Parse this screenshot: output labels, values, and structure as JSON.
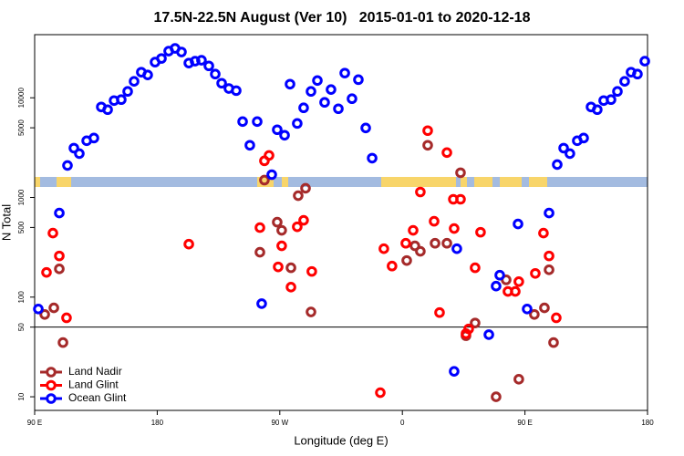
{
  "chart_data": {
    "type": "scatter",
    "title": "17.5N-22.5N August (Ver 10)   2015-01-01 to 2020-12-18",
    "x_label": "Longitude (deg E)",
    "y_label": "N Total",
    "xlim": [
      90,
      540
    ],
    "xticks": [
      {
        "value": 90,
        "label": "90 E"
      },
      180,
      {
        "value": 270,
        "label": "90 W"
      },
      {
        "value": 360,
        "label": "0"
      },
      {
        "value": 450,
        "label": "90 E"
      },
      {
        "value": 540,
        "label": "180"
      }
    ],
    "ylim": [
      7.3,
      43000
    ],
    "y_log": true,
    "yticks": [
      10,
      50,
      100,
      500,
      1000,
      5000,
      10000
    ],
    "hline": 50,
    "legend": "bottom-left",
    "series": [
      {
        "name": "Land Nadir",
        "color": "#a52a2a",
        "x": [
          97.4,
          104.1,
          108.1,
          110.8,
          255.4,
          258.7,
          268.1,
          271.4,
          278.2,
          283.5,
          288.9,
          292.9,
          363.2,
          369.2,
          373.2,
          378.6,
          384.0,
          392.7,
          402.7,
          406.7,
          413.4,
          428.8,
          436.2,
          445.5,
          456.9,
          464.3,
          467.7,
          471.0
        ],
        "values": [
          67,
          78,
          192,
          35,
          282,
          1493,
          565,
          468,
          197,
          1042,
          1236,
          71,
          233,
          327,
          288,
          3340,
          347,
          347,
          1770,
          41,
          55,
          10,
          149,
          15,
          67,
          78,
          188,
          35
        ]
      },
      {
        "name": "Land Glint",
        "color": "#ff0000",
        "x": [
          98.7,
          103.4,
          108.1,
          113.4,
          203.2,
          255.4,
          258.7,
          262.1,
          268.8,
          271.4,
          278.2,
          282.8,
          287.5,
          293.5,
          343.8,
          346.4,
          352.4,
          362.5,
          367.9,
          373.2,
          378.6,
          383.3,
          387.3,
          392.7,
          397.4,
          398.0,
          402.7,
          406.7,
          408.7,
          413.4,
          417.4,
          437.5,
          442.9,
          445.5,
          457.6,
          463.6,
          467.7,
          473.0
        ],
        "values": [
          177,
          439,
          259,
          62,
          340,
          498,
          2330,
          2640,
          201,
          327,
          126,
          508,
          590,
          181,
          11,
          306,
          205,
          347,
          468,
          1135,
          4680,
          577,
          70,
          2820,
          959,
          488,
          959,
          43,
          48,
          197,
          448,
          114,
          114,
          143,
          173,
          439,
          259,
          62
        ]
      },
      {
        "name": "Ocean Glint",
        "color": "#0000ff",
        "x": [
          92.7,
          108.1,
          114.1,
          118.8,
          122.8,
          128.2,
          133.5,
          138.9,
          143.6,
          148.3,
          153.6,
          158.3,
          163.0,
          168.3,
          173.0,
          178.4,
          183.1,
          188.4,
          193.1,
          197.8,
          203.2,
          207.8,
          212.5,
          217.9,
          222.6,
          227.3,
          232.6,
          238.0,
          242.7,
          248.0,
          253.4,
          256.7,
          264.1,
          268.1,
          273.5,
          277.5,
          282.8,
          287.5,
          292.9,
          297.6,
          302.9,
          307.6,
          313.0,
          317.7,
          323.0,
          327.7,
          333.1,
          337.8,
          398.0,
          400.0,
          423.5,
          428.8,
          431.5,
          444.9,
          451.6,
          467.7,
          473.7,
          478.4,
          483.0,
          488.4,
          493.1,
          498.5,
          503.1,
          507.8,
          513.2,
          517.9,
          523.2,
          527.9,
          532.6,
          538.0
        ],
        "values": [
          76,
          698,
          2094,
          3126,
          2754,
          3706,
          3947,
          8091,
          7600,
          9376,
          9590,
          11590,
          14620,
          18070,
          16950,
          22800,
          24800,
          29400,
          31300,
          28800,
          22300,
          23300,
          23800,
          20900,
          17300,
          14000,
          12400,
          11800,
          5770,
          3340,
          5770,
          86,
          1694,
          4780,
          4210,
          13700,
          5530,
          7930,
          11590,
          14900,
          9000,
          12100,
          7760,
          17700,
          9790,
          15200,
          4980,
          2480,
          18,
          306,
          42,
          129,
          166,
          542,
          76,
          698,
          2138,
          3126,
          2754,
          3706,
          3947,
          8091,
          7600,
          9376,
          9590,
          11590,
          14620,
          18070,
          17300,
          23300
        ]
      }
    ]
  }
}
